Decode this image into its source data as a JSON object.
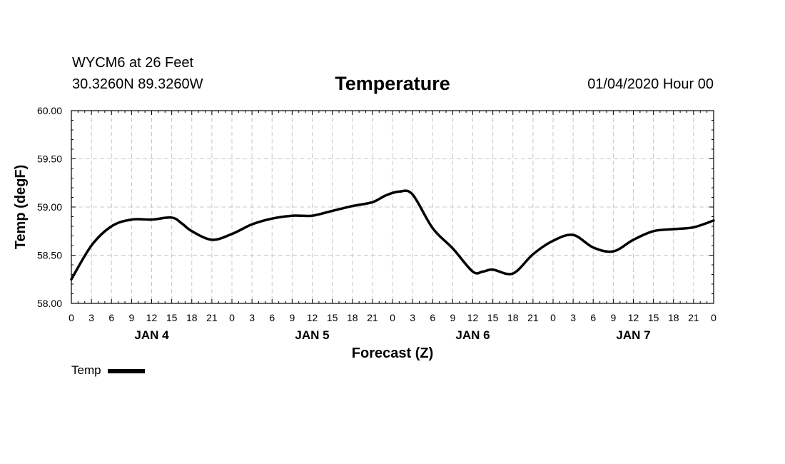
{
  "header": {
    "station": "WYCM6 at 26 Feet",
    "coords": "30.3260N 89.3260W",
    "title": "Temperature",
    "run": "01/04/2020 Hour 00"
  },
  "legend": {
    "label": "Temp"
  },
  "colors": {
    "line": "#000000",
    "grid": "#c8c8c8",
    "axis": "#000000"
  },
  "chart_data": {
    "type": "line",
    "title": "Temperature",
    "xlabel": "Forecast (Z)",
    "ylabel": "Temp (degF)",
    "xlim": [
      0,
      96
    ],
    "ylim": [
      58.0,
      60.0
    ],
    "y_ticks": [
      "58.00",
      "58.50",
      "59.00",
      "59.50",
      "60.00"
    ],
    "y_tick_values": [
      58.0,
      58.5,
      59.0,
      59.5,
      60.0
    ],
    "x_tick_labels": [
      "0",
      "3",
      "6",
      "9",
      "12",
      "15",
      "18",
      "21",
      "0",
      "3",
      "6",
      "9",
      "12",
      "15",
      "18",
      "21",
      "0",
      "3",
      "6",
      "9",
      "12",
      "15",
      "18",
      "21",
      "0",
      "3",
      "6",
      "9",
      "12",
      "15",
      "18",
      "21",
      "0"
    ],
    "day_labels": [
      {
        "label": "JAN 4",
        "hour": 12
      },
      {
        "label": "JAN 5",
        "hour": 36
      },
      {
        "label": "JAN 6",
        "hour": 60
      },
      {
        "label": "JAN 7",
        "hour": 84
      }
    ],
    "grid": true,
    "series": [
      {
        "name": "Temp",
        "x": [
          0,
          3,
          6,
          9,
          12,
          15,
          16.5,
          18,
          21,
          24,
          27,
          30,
          33,
          36,
          39,
          42,
          45,
          47,
          49,
          51,
          54,
          57,
          60,
          61.5,
          63,
          66,
          69,
          72,
          75,
          78,
          81,
          84,
          87,
          90,
          93,
          96
        ],
        "y": [
          58.25,
          58.6,
          58.8,
          58.87,
          58.87,
          58.89,
          58.83,
          58.75,
          58.66,
          58.72,
          58.82,
          58.88,
          58.91,
          58.91,
          58.96,
          59.01,
          59.05,
          59.12,
          59.16,
          59.13,
          58.78,
          58.57,
          58.33,
          58.33,
          58.35,
          58.31,
          58.51,
          58.65,
          58.71,
          58.58,
          58.54,
          58.66,
          58.75,
          58.77,
          58.79,
          58.86
        ]
      }
    ]
  }
}
